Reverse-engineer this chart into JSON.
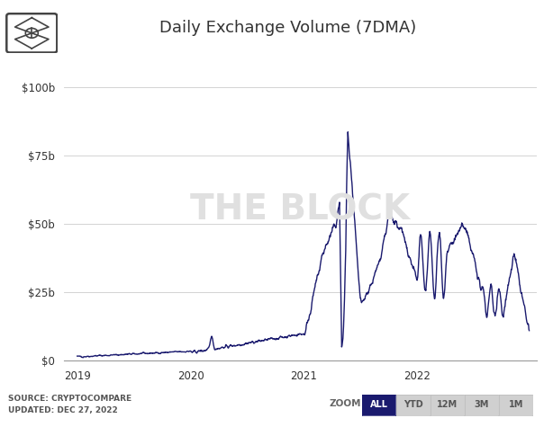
{
  "title": "Daily Exchange Volume (7DMA)",
  "title_fontsize": 13,
  "line_color": "#1a1a6e",
  "line_width": 1.0,
  "background_color": "#ffffff",
  "grid_color": "#cccccc",
  "accent_line_color": "#cc00cc",
  "watermark_text": "THE BLOCK",
  "watermark_color": "#e0e0e0",
  "watermark_fontsize": 28,
  "source_text": "SOURCE: CRYPTOCOMPARE\nUPDATED: DEC 27, 2022",
  "source_fontsize": 6.5,
  "ytick_labels": [
    "$0",
    "$25b",
    "$50b",
    "$75b",
    "$100b"
  ],
  "ytick_values": [
    0,
    25,
    50,
    75,
    100
  ],
  "xlabel_years": [
    "2019",
    "2020",
    "2021",
    "2022"
  ],
  "zoom_label": "ZOOM",
  "zoom_buttons": [
    "ALL",
    "YTD",
    "12M",
    "3M",
    "1M"
  ],
  "active_button": "ALL",
  "active_button_color": "#1a1a6e",
  "inactive_button_color": "#d0d0d0",
  "ylim": [
    0,
    110
  ],
  "xlim_left": 2018.88,
  "xlim_right": 2023.05
}
